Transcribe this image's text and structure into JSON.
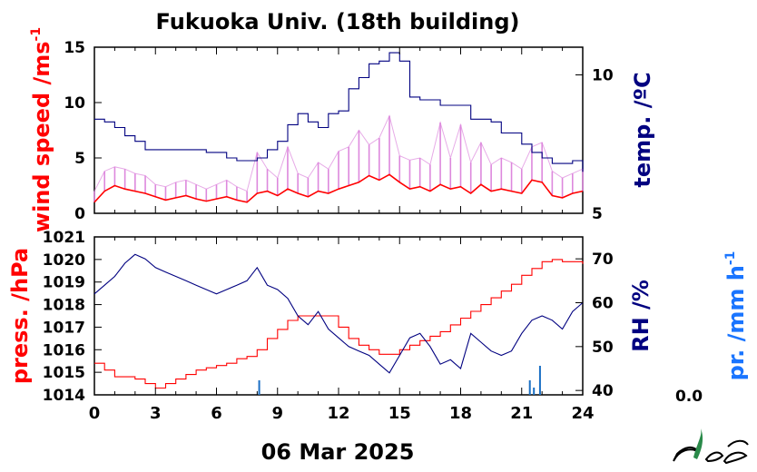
{
  "title": "Fukuoka Univ. (18th building)",
  "date_label": "06 Mar 2025",
  "precip_value": "0.0",
  "colors": {
    "wind": "#ff0000",
    "gust": "#dd88dd",
    "temp": "#000080",
    "pressure": "#ff0000",
    "rh": "#000080",
    "precip": "#1a6fc4",
    "precip_label": "#1a75ff",
    "axis": "#000000"
  },
  "chart_data": [
    {
      "type": "line",
      "name": "top-panel",
      "x_ticks": [
        "0",
        "3",
        "6",
        "9",
        "12",
        "15",
        "18",
        "21",
        "24"
      ],
      "xlim": [
        0,
        24
      ],
      "left_axis": {
        "label": "wind speed /ms",
        "label_sup": "-1",
        "ylim": [
          0,
          15
        ],
        "ticks": [
          "0",
          "5",
          "10",
          "15"
        ]
      },
      "right_axis": {
        "label": "temp. /ºC",
        "ylim": [
          5,
          11
        ],
        "ticks": [
          "5",
          "10"
        ]
      },
      "series": [
        {
          "name": "wind-speed",
          "axis": "left",
          "x": [
            0,
            0.5,
            1,
            1.5,
            2,
            2.5,
            3,
            3.5,
            4,
            4.5,
            5,
            5.5,
            6,
            6.5,
            7,
            7.5,
            8,
            8.5,
            9,
            9.5,
            10,
            10.5,
            11,
            11.5,
            12,
            12.5,
            13,
            13.5,
            14,
            14.5,
            15,
            15.5,
            16,
            16.5,
            17,
            17.5,
            18,
            18.5,
            19,
            19.5,
            20,
            20.5,
            21,
            21.5,
            22,
            22.5,
            23,
            23.5,
            24
          ],
          "y": [
            1.0,
            2.0,
            2.5,
            2.2,
            2.0,
            1.8,
            1.5,
            1.2,
            1.4,
            1.6,
            1.3,
            1.1,
            1.3,
            1.5,
            1.2,
            1.0,
            1.8,
            2.0,
            1.6,
            2.2,
            1.8,
            1.5,
            2.0,
            1.8,
            2.2,
            2.5,
            2.8,
            3.4,
            3.0,
            3.5,
            2.8,
            2.2,
            2.4,
            2.0,
            2.6,
            2.2,
            2.4,
            1.8,
            2.6,
            2.0,
            2.2,
            2.0,
            1.8,
            3.0,
            2.8,
            1.6,
            1.4,
            1.8,
            2.0
          ]
        },
        {
          "name": "gust",
          "axis": "left",
          "x": [
            0,
            0.5,
            1,
            1.5,
            2,
            2.5,
            3,
            3.5,
            4,
            4.5,
            5,
            5.5,
            6,
            6.5,
            7,
            7.5,
            8,
            8.5,
            9,
            9.5,
            10,
            10.5,
            11,
            11.5,
            12,
            12.5,
            13,
            13.5,
            14,
            14.5,
            15,
            15.5,
            16,
            16.5,
            17,
            17.5,
            18,
            18.5,
            19,
            19.5,
            20,
            20.5,
            21,
            21.5,
            22,
            22.5,
            23,
            23.5,
            24
          ],
          "y": [
            2.0,
            3.8,
            4.2,
            4.0,
            3.6,
            3.4,
            2.6,
            2.4,
            2.8,
            3.0,
            2.6,
            2.2,
            2.6,
            3.0,
            2.4,
            2.0,
            5.5,
            4.0,
            3.2,
            6.0,
            3.6,
            3.2,
            4.6,
            4.0,
            5.6,
            6.0,
            7.5,
            6.2,
            6.8,
            8.8,
            5.2,
            4.8,
            5.0,
            4.4,
            8.2,
            5.0,
            8.0,
            4.6,
            6.4,
            4.4,
            5.0,
            4.6,
            4.0,
            6.0,
            6.4,
            3.8,
            3.2,
            3.6,
            4.0
          ]
        },
        {
          "name": "temperature",
          "axis": "right",
          "x": [
            0,
            0.5,
            1,
            1.5,
            2,
            2.5,
            3,
            3.5,
            4,
            4.5,
            5,
            5.5,
            6,
            6.5,
            7,
            7.5,
            8,
            8.5,
            9,
            9.5,
            10,
            10.5,
            11,
            11.5,
            12,
            12.5,
            13,
            13.5,
            14,
            14.5,
            15,
            15.5,
            16,
            16.5,
            17,
            17.5,
            18,
            18.5,
            19,
            19.5,
            20,
            20.5,
            21,
            21.5,
            22,
            22.5,
            23,
            23.5,
            24
          ],
          "y": [
            8.4,
            8.3,
            8.1,
            7.8,
            7.6,
            7.3,
            7.3,
            7.3,
            7.3,
            7.3,
            7.3,
            7.2,
            7.2,
            7.0,
            6.9,
            6.9,
            7.0,
            7.3,
            7.6,
            8.2,
            8.6,
            8.3,
            8.1,
            8.6,
            8.7,
            9.5,
            9.9,
            10.4,
            10.5,
            10.8,
            10.5,
            9.2,
            9.1,
            9.1,
            8.9,
            8.9,
            8.9,
            8.4,
            8.4,
            8.3,
            7.9,
            7.9,
            7.5,
            7.2,
            7.0,
            6.8,
            6.8,
            6.9,
            6.5
          ]
        }
      ]
    },
    {
      "type": "line",
      "name": "bottom-panel",
      "x_ticks": [
        "0",
        "3",
        "6",
        "9",
        "12",
        "15",
        "18",
        "21",
        "24"
      ],
      "xlim": [
        0,
        24
      ],
      "xlabel": "06 Mar 2025",
      "left_axis": {
        "label": "press. /hPa",
        "ylim": [
          1014,
          1021
        ],
        "ticks": [
          "1014",
          "1015",
          "1016",
          "1017",
          "1018",
          "1019",
          "1020",
          "1021"
        ]
      },
      "right_axis": {
        "label": "RH /%",
        "ylim": [
          39,
          75
        ],
        "ticks": [
          "40",
          "50",
          "60",
          "70"
        ]
      },
      "extra_axis": {
        "label": "pr. /mm h",
        "label_sup": "-1"
      },
      "series": [
        {
          "name": "pressure",
          "axis": "left",
          "x": [
            0,
            0.5,
            1,
            1.5,
            2,
            2.5,
            3,
            3.5,
            4,
            4.5,
            5,
            5.5,
            6,
            6.5,
            7,
            7.5,
            8,
            8.5,
            9,
            9.5,
            10,
            10.5,
            11,
            11.5,
            12,
            12.5,
            13,
            13.5,
            14,
            14.5,
            15,
            15.5,
            16,
            16.5,
            17,
            17.5,
            18,
            18.5,
            19,
            19.5,
            20,
            20.5,
            21,
            21.5,
            22,
            22.5,
            23,
            23.5,
            24
          ],
          "y": [
            1015.4,
            1015.1,
            1014.8,
            1014.8,
            1014.7,
            1014.5,
            1014.3,
            1014.5,
            1014.7,
            1014.9,
            1015.1,
            1015.2,
            1015.3,
            1015.4,
            1015.6,
            1015.7,
            1016.0,
            1016.5,
            1016.9,
            1017.3,
            1017.5,
            1017.5,
            1017.5,
            1017.5,
            1017.0,
            1016.5,
            1016.2,
            1016.0,
            1015.8,
            1015.8,
            1016.0,
            1016.2,
            1016.4,
            1016.6,
            1016.8,
            1017.1,
            1017.4,
            1017.7,
            1018.0,
            1018.3,
            1018.6,
            1018.9,
            1019.3,
            1019.6,
            1019.9,
            1020.0,
            1019.9,
            1019.9,
            1019.8
          ]
        },
        {
          "name": "relative-humidity",
          "axis": "right",
          "x": [
            0,
            0.5,
            1,
            1.5,
            2,
            2.5,
            3,
            3.5,
            4,
            4.5,
            5,
            5.5,
            6,
            6.5,
            7,
            7.5,
            8,
            8.5,
            9,
            9.5,
            10,
            10.5,
            11,
            11.5,
            12,
            12.5,
            13,
            13.5,
            14,
            14.5,
            15,
            15.5,
            16,
            16.5,
            17,
            17.5,
            18,
            18.5,
            19,
            19.5,
            20,
            20.5,
            21,
            21.5,
            22,
            22.5,
            23,
            23.5,
            24
          ],
          "y": [
            62,
            64,
            66,
            69,
            71,
            70,
            68,
            67,
            66,
            65,
            64,
            63,
            62,
            63,
            64,
            65,
            68,
            64,
            63,
            61,
            57,
            55,
            58,
            54,
            52,
            50,
            49,
            48,
            46,
            44,
            48,
            52,
            53,
            50,
            46,
            47,
            45,
            53,
            51,
            49,
            48,
            49,
            53,
            56,
            57,
            56,
            54,
            58,
            60
          ]
        },
        {
          "name": "precipitation",
          "axis": "extra",
          "x": [
            8.1,
            21.4,
            21.6,
            21.9
          ],
          "y": [
            0.4,
            0.4,
            0.2,
            0.8
          ]
        }
      ]
    }
  ]
}
